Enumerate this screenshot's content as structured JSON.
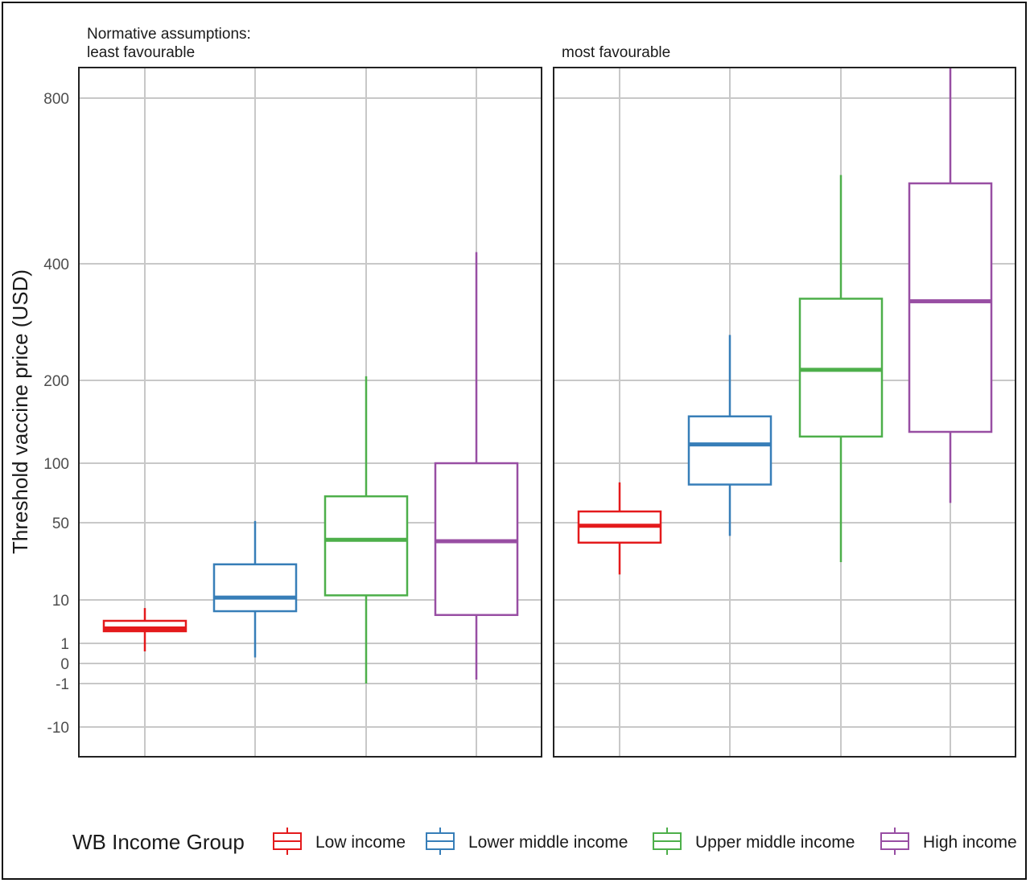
{
  "chart_data": {
    "type": "box",
    "ylabel": "Threshold vaccine price (USD)",
    "y_scale": "pseudo-log",
    "y_ticks": [
      -10,
      -1,
      0,
      1,
      10,
      50,
      100,
      200,
      400,
      800
    ],
    "y_tick_labels": [
      "-10",
      "-1",
      "0",
      "1",
      "10",
      "50",
      "100",
      "200",
      "400",
      "800"
    ],
    "legend": {
      "title": "WB Income Group",
      "placement": "bottom",
      "entries": [
        "Low income",
        "Lower middle income",
        "Upper middle income",
        "High income"
      ]
    },
    "colors": {
      "Low income": "#e41a1c",
      "Lower middle income": "#377eb8",
      "Upper middle income": "#4daf4a",
      "High income": "#984ea3"
    },
    "panels": [
      {
        "title_line1": "Normative assumptions:",
        "title_line2": "least favourable",
        "boxes": [
          {
            "group": "Low income",
            "lower_whisker": 0.6,
            "q1": 1.9,
            "median": 2.2,
            "q3": 3.3,
            "upper_whisker": 6.5
          },
          {
            "group": "Lower middle income",
            "lower_whisker": 0.3,
            "q1": 5.5,
            "median": 10.5,
            "q3": 21,
            "upper_whisker": 51
          },
          {
            "group": "Upper middle income",
            "lower_whisker": -1,
            "q1": 11,
            "median": 35,
            "q3": 68,
            "upper_whisker": 205
          },
          {
            "group": "High income",
            "lower_whisker": -0.8,
            "q1": 4.5,
            "median": 34,
            "q3": 100,
            "upper_whisker": 420
          }
        ]
      },
      {
        "title_line1": "",
        "title_line2": "most favourable",
        "boxes": [
          {
            "group": "Low income",
            "lower_whisker": 17,
            "q1": 33,
            "median": 47,
            "q3": 57,
            "upper_whisker": 80
          },
          {
            "group": "Lower middle income",
            "lower_whisker": 38,
            "q1": 78,
            "median": 117,
            "q3": 148,
            "upper_whisker": 262
          },
          {
            "group": "Upper middle income",
            "lower_whisker": 22,
            "q1": 125,
            "median": 213,
            "q3": 325,
            "upper_whisker": 580
          },
          {
            "group": "High income",
            "lower_whisker": 63,
            "q1": 130,
            "median": 320,
            "q3": 560,
            "upper_whisker": 900
          }
        ]
      }
    ]
  }
}
